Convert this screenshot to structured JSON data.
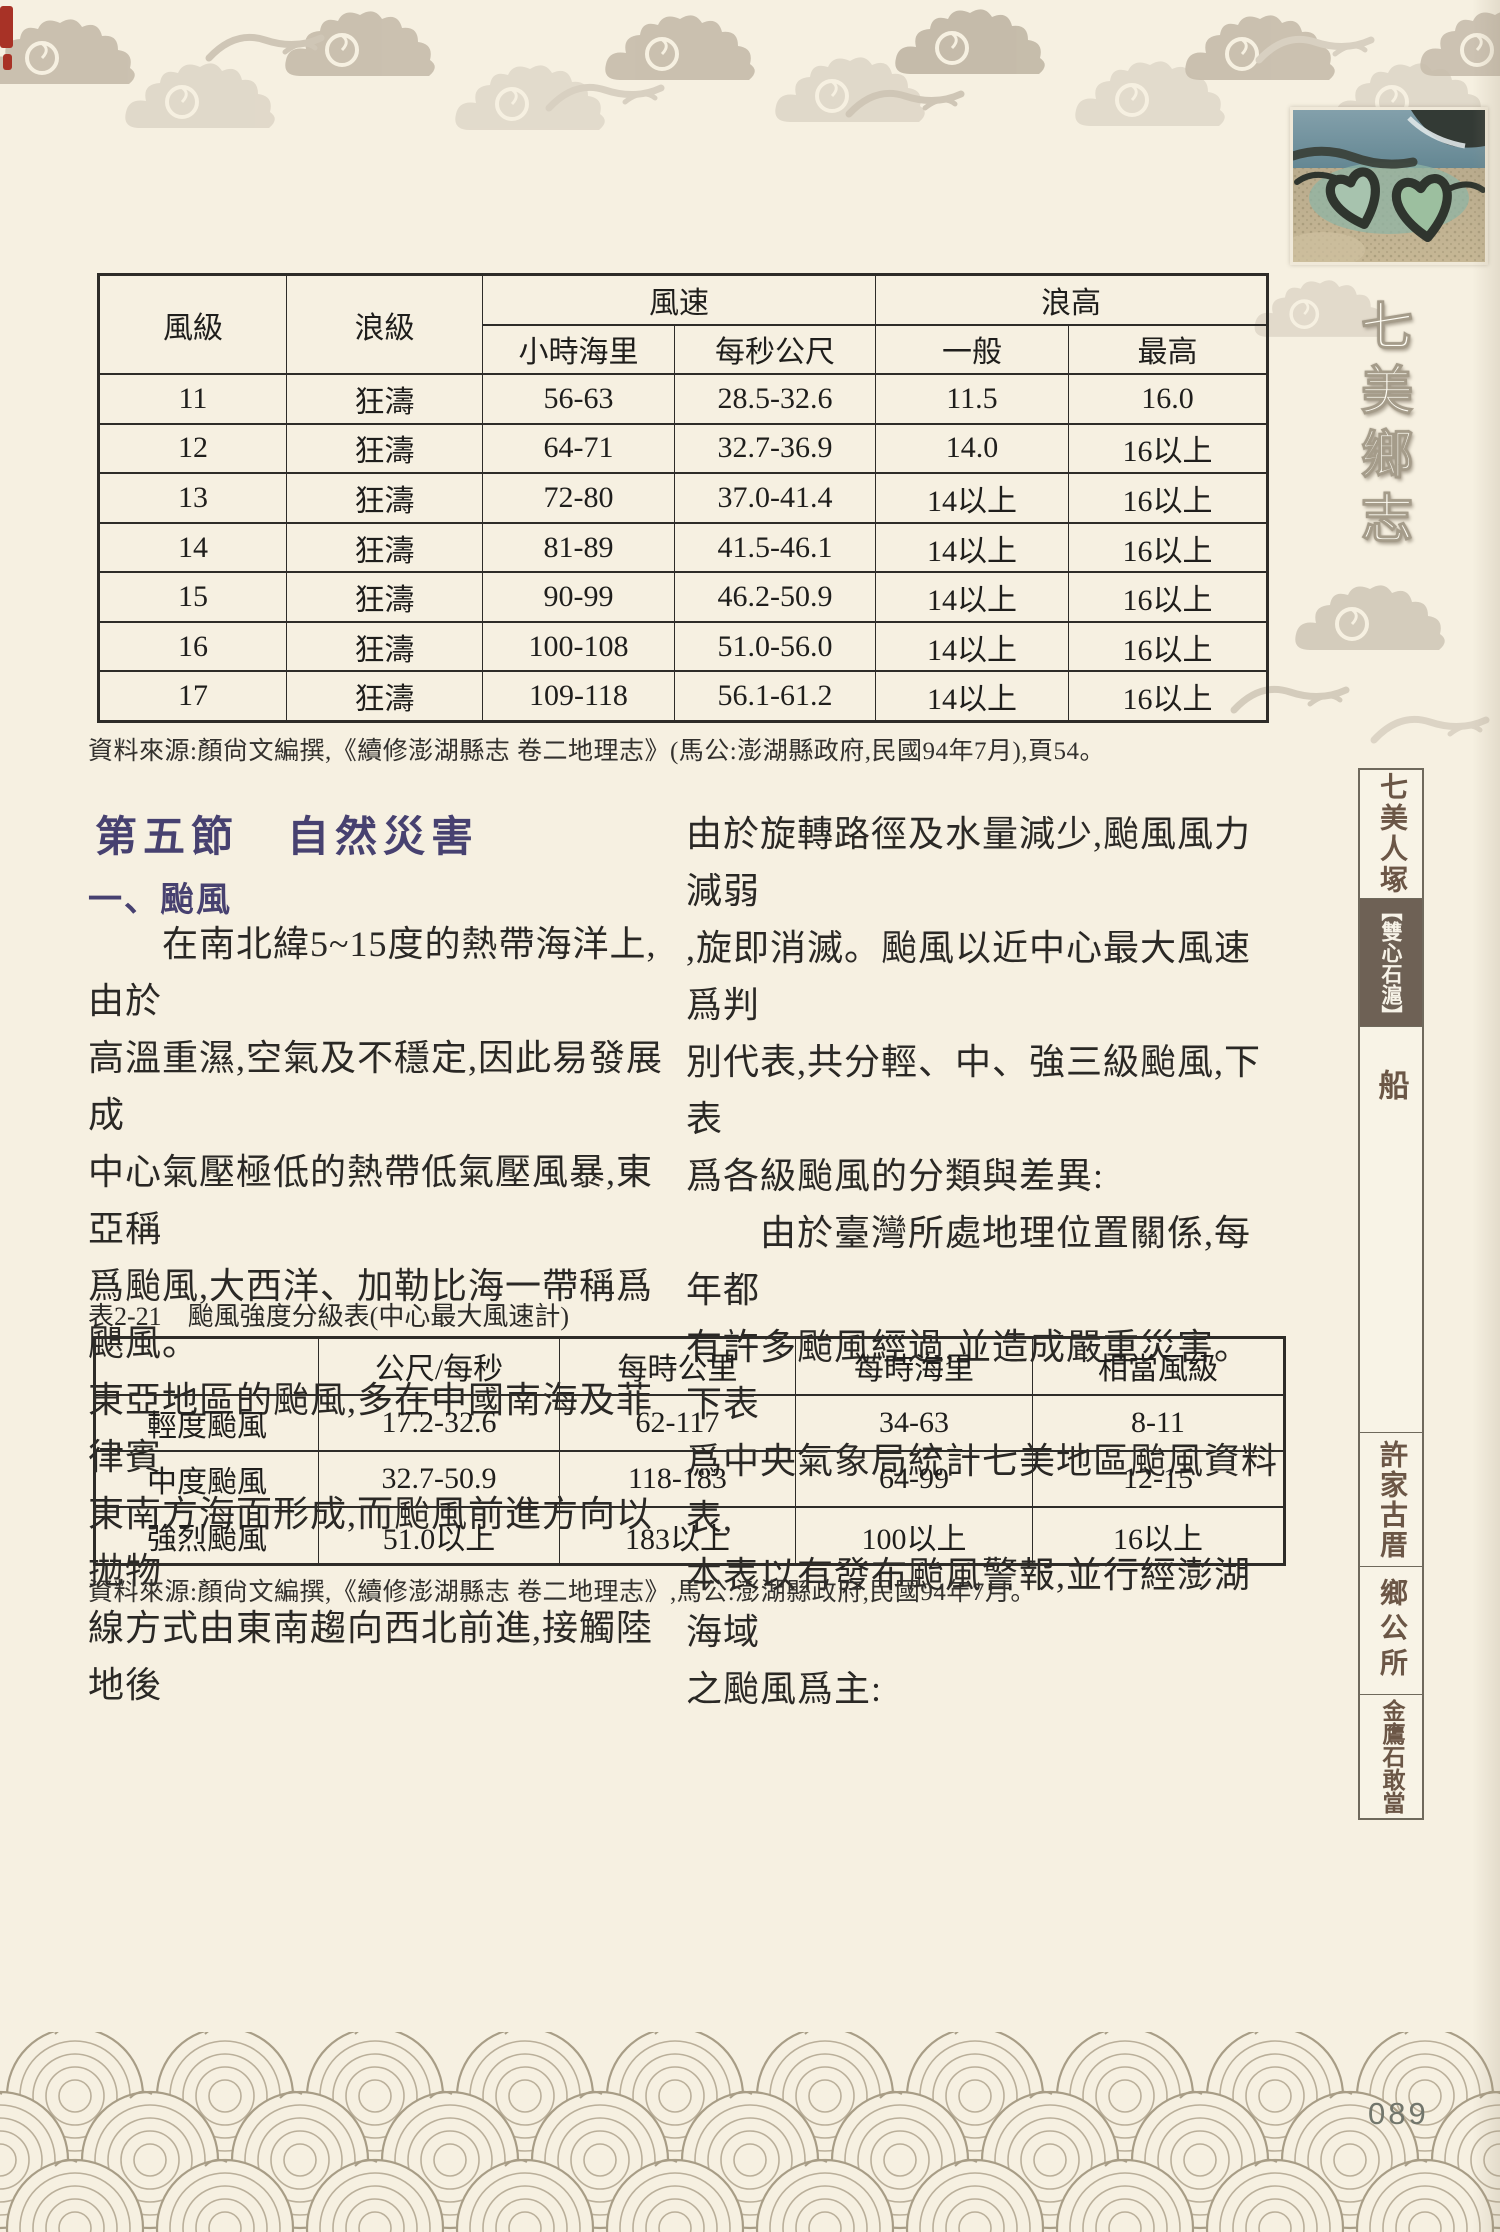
{
  "page": {
    "number": "089"
  },
  "colors": {
    "page_bg": "#f6f0e1",
    "heading": "#474170",
    "nav_active_bg": "#6e6155",
    "nav_text": "#6b5646",
    "table_line": "#2e2c28",
    "cloud_pattern": "#c8bead",
    "wave_pattern": "#a89d86",
    "page_number": "#72766c"
  },
  "sidebar": {
    "title_chars": [
      "七",
      "美",
      "鄉",
      "志"
    ],
    "nav_items": [
      {
        "label": "七美人塚",
        "active": false
      },
      {
        "label": "【雙心石滬】",
        "active": true
      },
      {
        "label": "船",
        "active": false
      },
      {
        "label": "許家古厝",
        "active": false
      },
      {
        "label": "鄉公所",
        "active": false
      },
      {
        "label": "金鷹石敢當",
        "active": false
      }
    ]
  },
  "wind_wave_table": {
    "headers": {
      "col1": "風級",
      "col2": "浪級",
      "group1": "風速",
      "group1_sub": [
        "小時海里",
        "每秒公尺"
      ],
      "group2": "浪高",
      "group2_sub": [
        "一般",
        "最高"
      ]
    },
    "rows": [
      [
        "11",
        "狂濤",
        "56-63",
        "28.5-32.6",
        "11.5",
        "16.0"
      ],
      [
        "12",
        "狂濤",
        "64-71",
        "32.7-36.9",
        "14.0",
        "16以上"
      ],
      [
        "13",
        "狂濤",
        "72-80",
        "37.0-41.4",
        "14以上",
        "16以上"
      ],
      [
        "14",
        "狂濤",
        "81-89",
        "41.5-46.1",
        "14以上",
        "16以上"
      ],
      [
        "15",
        "狂濤",
        "90-99",
        "46.2-50.9",
        "14以上",
        "16以上"
      ],
      [
        "16",
        "狂濤",
        "100-108",
        "51.0-56.0",
        "14以上",
        "16以上"
      ],
      [
        "17",
        "狂濤",
        "109-118",
        "56.1-61.2",
        "14以上",
        "16以上"
      ]
    ],
    "source": "資料來源:顏尙文編撰,《續修澎湖縣志 卷二地理志》(馬公:澎湖縣政府,民國94年7月),頁54。"
  },
  "section": {
    "heading": "第五節　自然災害",
    "subheading": "一、颱風"
  },
  "body": {
    "left_lines": [
      "　　在南北緯5~15度的熱帶海洋上,由於",
      "高溫重濕,空氣及不穩定,因此易發展成",
      "中心氣壓極低的熱帶低氣壓風暴,東亞稱",
      "爲颱風,大西洋、加勒比海一帶稱爲颶風。",
      "東亞地區的颱風,多在中國南海及菲律賓",
      "東南方海面形成,而颱風前進方向以拋物",
      "線方式由東南趨向西北前進,接觸陸地後"
    ],
    "right_lines": [
      "由於旋轉路徑及水量減少,颱風風力減弱",
      ",旋即消滅。颱風以近中心最大風速爲判",
      "別代表,共分輕、中、強三級颱風,下表",
      "爲各級颱風的分類與差異:",
      "　　由於臺灣所處地理位置關係,每年都",
      "有許多颱風經過,並造成嚴重災害。下表",
      "爲中央氣象局統計七美地區颱風資料表,",
      "本表以有發布颱風警報,並行經澎湖海域",
      "之颱風爲主:"
    ]
  },
  "typhoon_table": {
    "caption": "表2-21　颱風強度分級表(中心最大風速計)",
    "headers": [
      "",
      "公尺/每秒",
      "每時公里",
      "每時海里",
      "相當風級"
    ],
    "rows": [
      [
        "輕度颱風",
        "17.2-32.6",
        "62-117",
        "34-63",
        "8-11"
      ],
      [
        "中度颱風",
        "32.7-50.9",
        "118-183",
        "64-99",
        "12-15"
      ],
      [
        "強烈颱風",
        "51.0以上",
        "183以上",
        "100以上",
        "16以上"
      ]
    ],
    "source": "資料來源:顏尙文編撰,《續修澎湖縣志 卷二地理志》,馬公:澎湖縣政府,民國94年7月。"
  }
}
